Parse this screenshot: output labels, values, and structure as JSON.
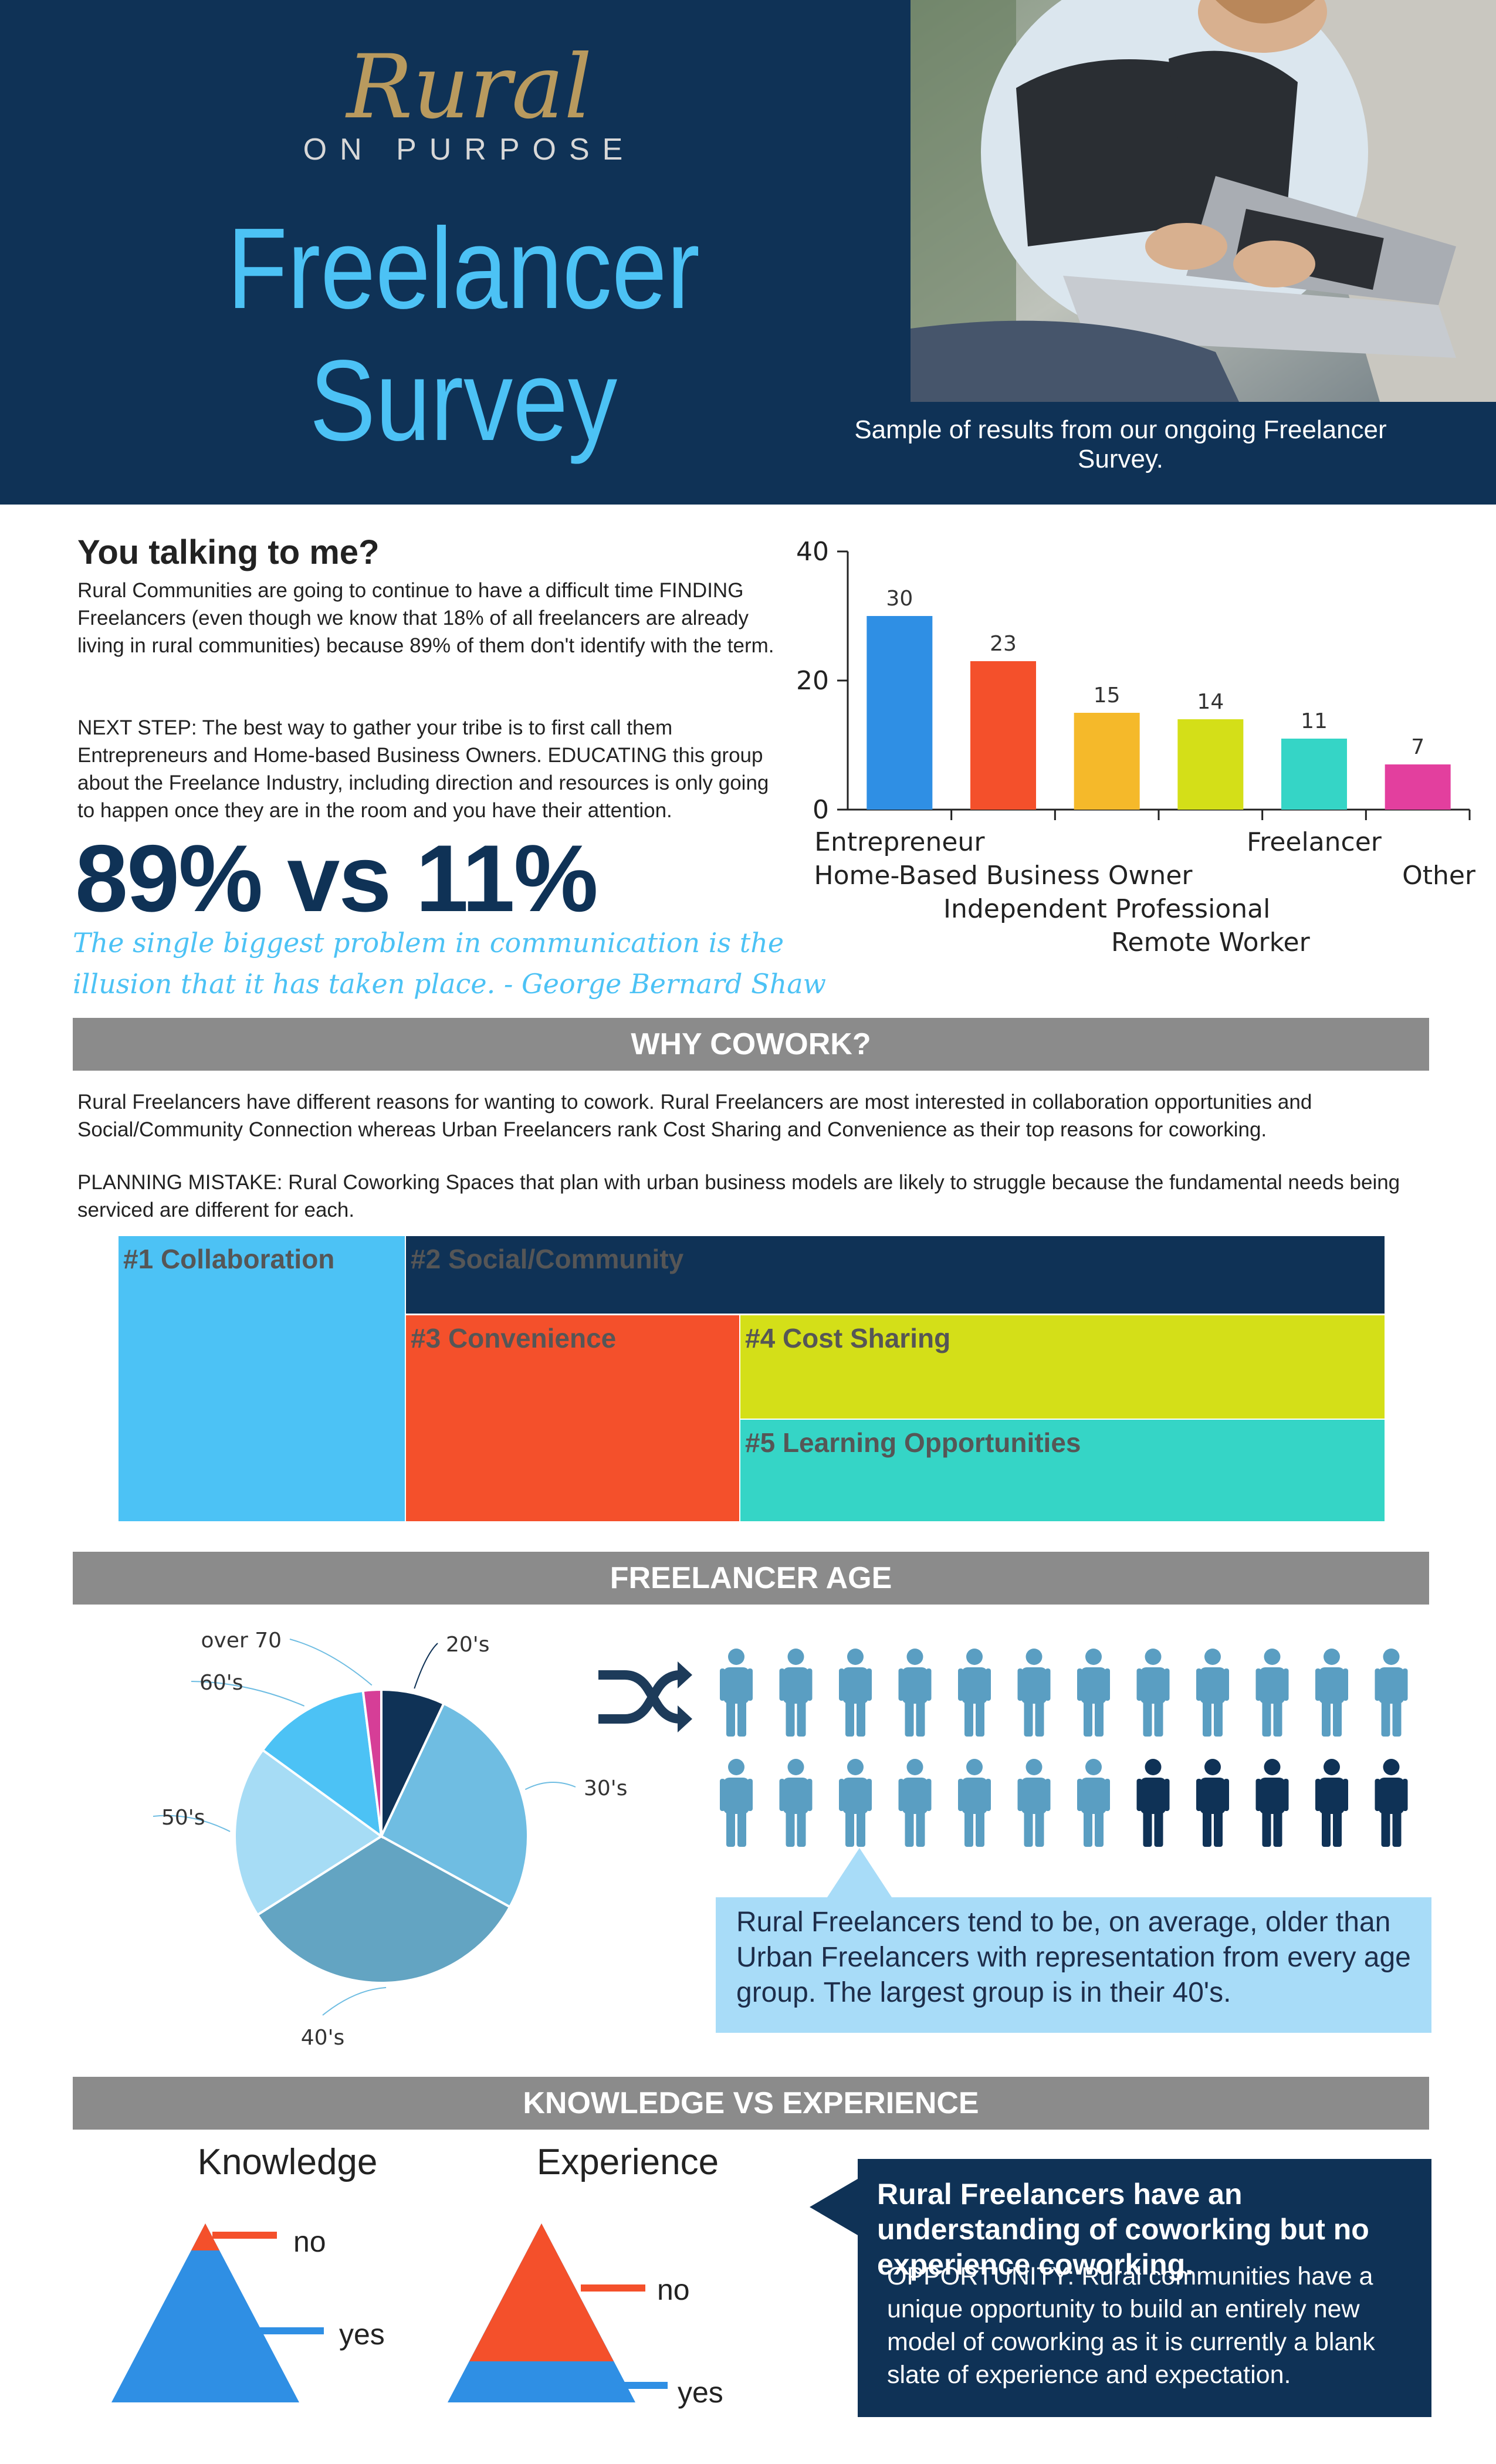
{
  "header": {
    "logo_script": "Rural",
    "logo_sub": "ON PURPOSE",
    "title": "Freelancer Survey",
    "caption": "Sample of results from our ongoing Freelancer Survey."
  },
  "intro": {
    "heading": "You talking to me?",
    "paragraph1": "Rural Communities are going to continue to have a difficult time FINDING Freelancers (even though we know that 18% of all freelancers are already living in rural communities) because 89% of them don't identify with the term.",
    "paragraph2": "NEXT STEP: The best way to gather your tribe is to first call them Entrepreneurs and Home-based Business Owners. EDUCATING this group about the Freelance Industry, including direction and resources is only going to happen once they are in the room and you have their attention.",
    "big_stat": "89% vs 11%",
    "quote": "The single biggest problem in communication is the illusion that it has taken place. - George Bernard Shaw"
  },
  "chart_data": [
    {
      "type": "bar",
      "categories": [
        "Entrepreneur",
        "Home-Based Business Owner",
        "Independent Professional",
        "Remote Worker",
        "Freelancer",
        "Other"
      ],
      "values": [
        30,
        23,
        15,
        14,
        11,
        7
      ],
      "colors": [
        "#2f8fe4",
        "#f4502b",
        "#f5b92a",
        "#d4df18",
        "#35d5c6",
        "#e33f9e"
      ],
      "ylim": [
        0,
        40
      ],
      "yticks": [
        "0",
        "20",
        "40"
      ],
      "title": "",
      "xlabel": "",
      "ylabel": ""
    },
    {
      "type": "pie",
      "categories": [
        "20's",
        "30's",
        "40's",
        "50's",
        "60's",
        "over 70"
      ],
      "values": [
        7,
        26,
        33,
        19,
        13,
        2
      ],
      "colors": [
        "#0f3256",
        "#6fbde2",
        "#63a4c2",
        "#a6dcf5",
        "#4cc2f5",
        "#d63e97"
      ]
    }
  ],
  "cowork": {
    "banner": "WHY COWORK?",
    "paragraph1": "Rural Freelancers have different reasons for wanting to cowork. Rural Freelancers are most interested in collaboration opportunities and Social/Community Connection whereas Urban Freelancers rank Cost Sharing and Convenience as their top reasons for coworking.",
    "paragraph2": "PLANNING MISTAKE: Rural Coworking Spaces that plan with urban business models are likely to struggle because the fundamental needs being serviced are different for each.",
    "treemap": [
      {
        "label": "#1 Collaboration",
        "color": "#4cc2f5"
      },
      {
        "label": "#2 Social/Community",
        "color": "#0f3256"
      },
      {
        "label": "#3 Convenience",
        "color": "#f4502b"
      },
      {
        "label": "#4 Cost Sharing",
        "color": "#d4df18"
      },
      {
        "label": "#5 Learning Opportunities",
        "color": "#35d5c6"
      }
    ]
  },
  "age": {
    "banner": "FREELANCER AGE",
    "note": "Rural Freelancers tend to be, on average, older than Urban Freelancers with representation from every age group. The largest group is in their 40's.",
    "people_total": 24,
    "people_highlighted": 5
  },
  "knowledge": {
    "banner": "KNOWLEDGE VS EXPERIENCE",
    "knowledge_title": "Knowledge",
    "experience_title": "Experience",
    "no_label": "no",
    "yes_label": "yes",
    "knowledge_no_fraction": 0.15,
    "experience_no_fraction": 0.77,
    "callout_heading": "Rural Freelancers have an understanding of coworking but no experience coworking.",
    "callout_body": "OPPORTUNITY: Rural communities have a unique opportunity to build an entirely new model of coworking as it is currently a blank slate of experience and expectation."
  }
}
